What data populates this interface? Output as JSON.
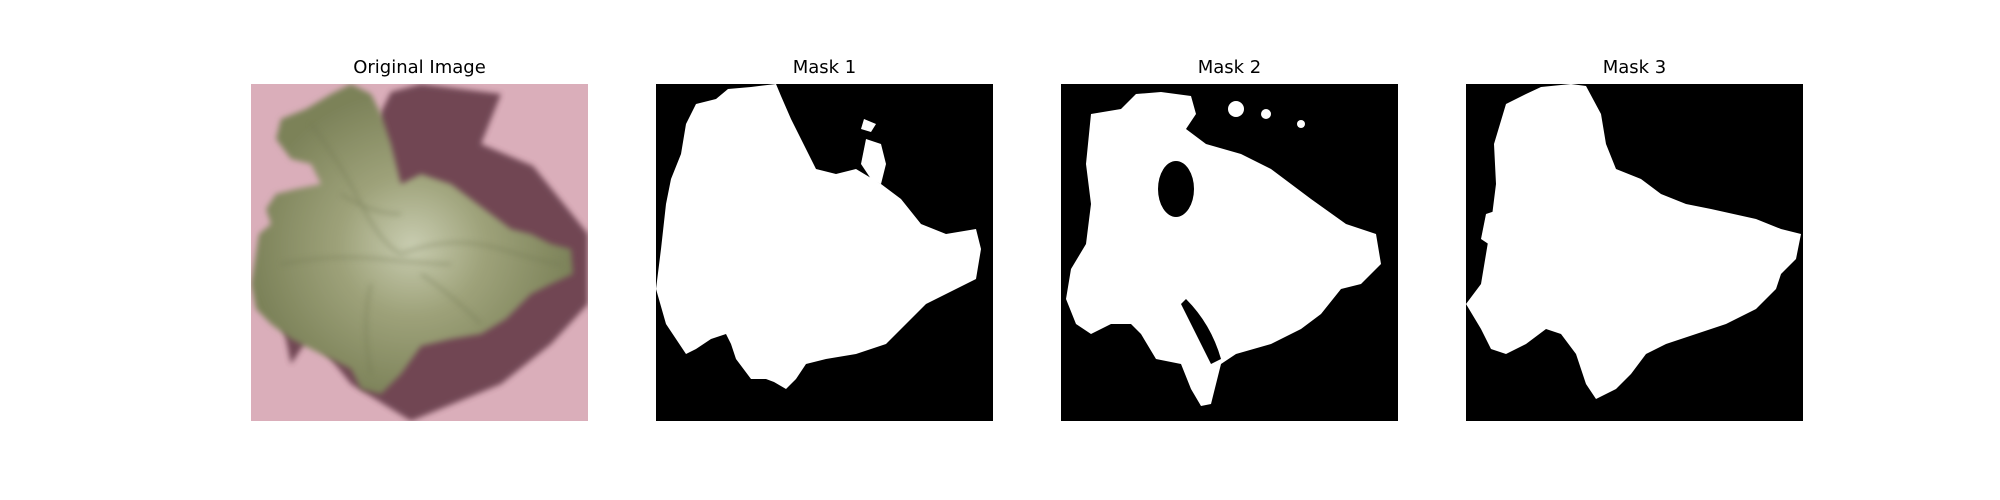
{
  "panels": [
    {
      "title": "Original Image",
      "kind": "photo"
    },
    {
      "title": "Mask 1",
      "kind": "mask"
    },
    {
      "title": "Mask 2",
      "kind": "mask"
    },
    {
      "title": "Mask 3",
      "kind": "mask"
    }
  ],
  "colors": {
    "background": "#d6a7b5",
    "shadow": "#5e3443",
    "leaf": "#8a8f62",
    "leaf_highlight": "#b9bfa0",
    "mask_background": "#000000",
    "mask_foreground": "#ffffff"
  }
}
